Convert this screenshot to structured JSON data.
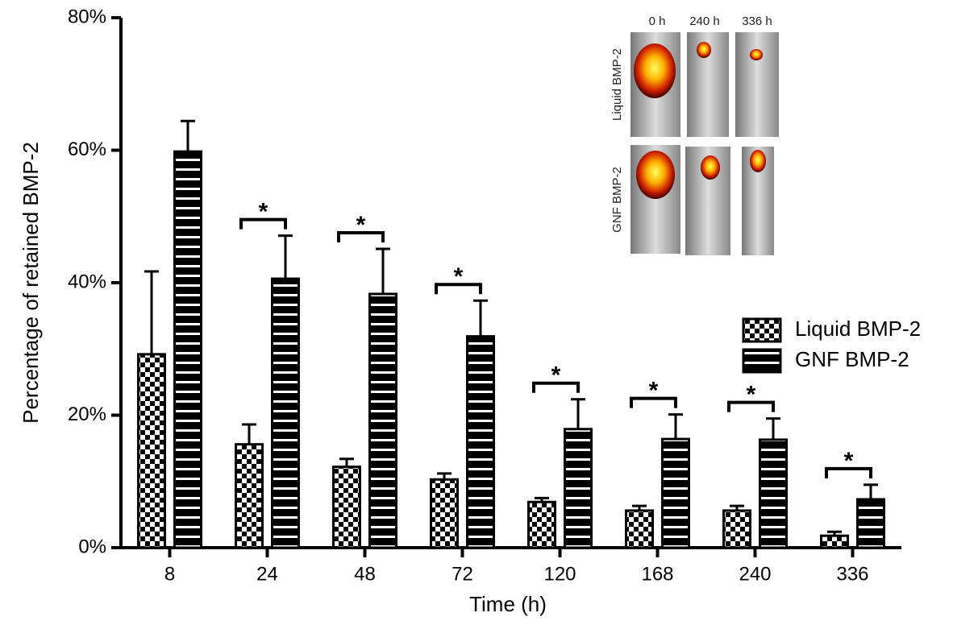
{
  "chart_data": {
    "type": "bar",
    "y_label": "Percentage of retained BMP-2",
    "x_label": "Time (h)",
    "categories": [
      "8",
      "24",
      "48",
      "72",
      "120",
      "168",
      "240",
      "336"
    ],
    "series": [
      {
        "name": "Liquid BMP-2",
        "color": "#000000",
        "pattern": "checker",
        "values": [
          29.2,
          15.6,
          12.2,
          10.3,
          6.9,
          5.6,
          5.6,
          1.8
        ],
        "errors": [
          12.5,
          3.0,
          1.2,
          0.9,
          0.6,
          0.7,
          0.7,
          0.6
        ]
      },
      {
        "name": "GNF BMP-2",
        "color": "#000000",
        "pattern": "stripes",
        "values": [
          59.8,
          40.6,
          38.3,
          31.9,
          17.9,
          16.4,
          16.3,
          7.3
        ],
        "errors": [
          4.6,
          6.5,
          6.8,
          5.4,
          4.5,
          3.7,
          3.2,
          2.2
        ]
      }
    ],
    "significance": [
      null,
      "*",
      "*",
      "*",
      "*",
      "*",
      "*",
      "*"
    ],
    "ylim": [
      0,
      80
    ],
    "yticks": [
      {
        "value": 0,
        "label": "0%"
      },
      {
        "value": 20,
        "label": "20%"
      },
      {
        "value": 40,
        "label": "40%"
      },
      {
        "value": 60,
        "label": "60%"
      },
      {
        "value": 80,
        "label": "80%"
      }
    ],
    "grid": false,
    "legend": "right",
    "inset": {
      "columns": [
        "0 h",
        "240 h",
        "336 h"
      ],
      "rows": [
        "Liquid BMP-2",
        "GNF BMP-2"
      ]
    }
  }
}
